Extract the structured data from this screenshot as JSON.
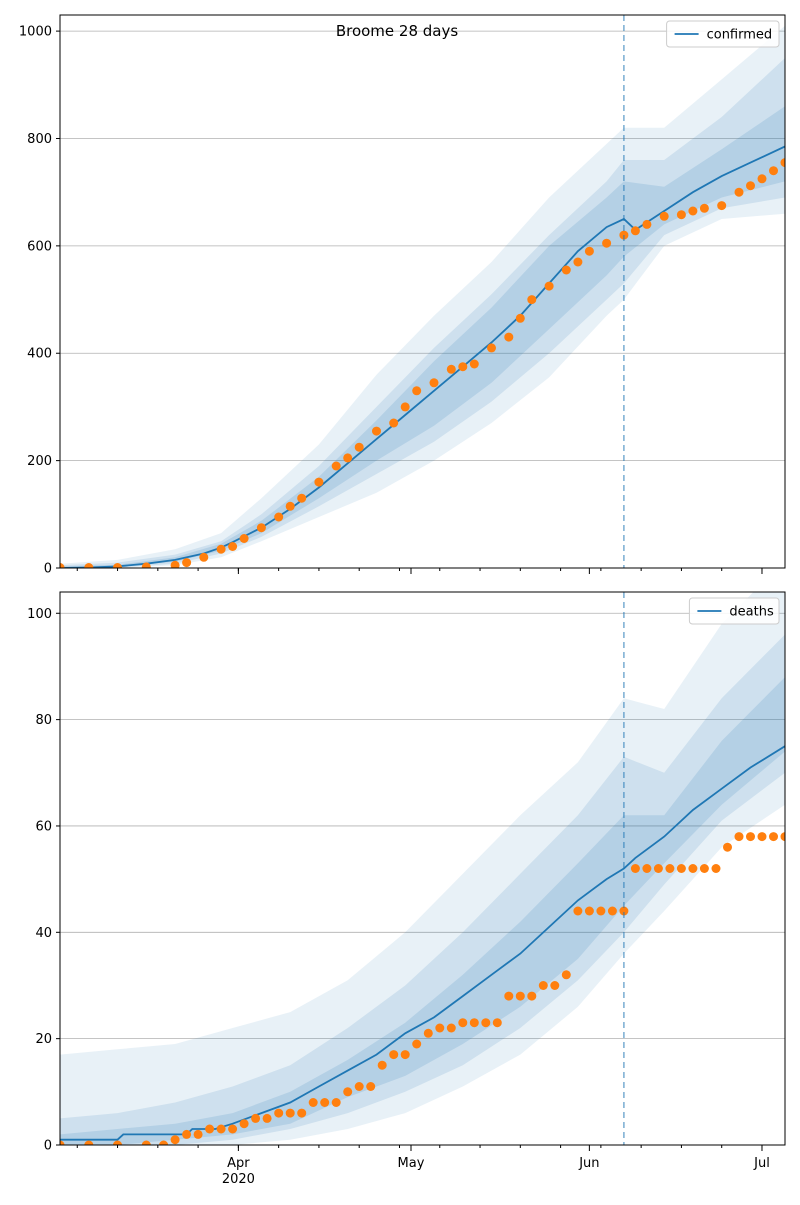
{
  "chart_data": [
    {
      "type": "line",
      "title": "Broome 28 days",
      "x_start_date": "2020-03-01",
      "x_range_days": [
        0,
        126
      ],
      "forecast_start_day": 98,
      "ylim": [
        0,
        1030
      ],
      "yticks": [
        0,
        200,
        400,
        600,
        800,
        1000
      ],
      "grid": "horizontal",
      "legend_position": "top-right",
      "series": [
        {
          "name": "confirmed",
          "color": "#1f77b4",
          "kind": "line",
          "x": [
            0,
            5,
            10,
            15,
            20,
            25,
            28,
            30,
            35,
            40,
            45,
            50,
            55,
            60,
            65,
            70,
            75,
            80,
            85,
            90,
            95,
            98,
            100,
            105,
            110,
            115,
            120,
            126
          ],
          "values": [
            0,
            1,
            3,
            8,
            15,
            27,
            38,
            48,
            75,
            110,
            150,
            195,
            240,
            285,
            330,
            375,
            420,
            470,
            530,
            590,
            635,
            650,
            630,
            665,
            700,
            730,
            755,
            785
          ]
        },
        {
          "kind": "scatter",
          "color": "#ff7f0e",
          "x": [
            0,
            5,
            10,
            15,
            20,
            22,
            25,
            28,
            30,
            32,
            35,
            38,
            40,
            42,
            45,
            48,
            50,
            52,
            55,
            58,
            60,
            62,
            65,
            68,
            70,
            72,
            75,
            78,
            80,
            82,
            85,
            88,
            90,
            92,
            95,
            98,
            100,
            102,
            105,
            108,
            110,
            112,
            115,
            118,
            120,
            122,
            124,
            126
          ],
          "values": [
            1,
            1,
            1,
            2,
            5,
            10,
            20,
            35,
            40,
            55,
            75,
            95,
            115,
            130,
            160,
            190,
            205,
            225,
            255,
            270,
            300,
            330,
            345,
            370,
            375,
            380,
            410,
            430,
            465,
            500,
            525,
            555,
            570,
            590,
            605,
            620,
            628,
            640,
            655,
            658,
            665,
            670,
            675,
            700,
            712,
            725,
            740,
            755
          ]
        }
      ],
      "bands": [
        {
          "opacity": 0.1,
          "x": [
            0,
            10,
            20,
            28,
            35,
            45,
            55,
            65,
            75,
            85,
            95,
            98,
            105,
            115,
            126
          ],
          "lower": [
            0,
            0,
            5,
            20,
            50,
            95,
            140,
            200,
            270,
            355,
            470,
            500,
            600,
            650,
            660
          ],
          "upper": [
            8,
            15,
            35,
            65,
            130,
            230,
            360,
            470,
            570,
            690,
            790,
            820,
            820,
            910,
            1010
          ]
        },
        {
          "opacity": 0.13,
          "x": [
            0,
            10,
            20,
            28,
            35,
            45,
            55,
            65,
            75,
            85,
            95,
            98,
            105,
            115,
            126
          ],
          "lower": [
            0,
            1,
            8,
            27,
            58,
            115,
            175,
            235,
            310,
            400,
            500,
            530,
            620,
            670,
            690
          ],
          "upper": [
            5,
            10,
            25,
            50,
            100,
            190,
            300,
            410,
            510,
            620,
            720,
            760,
            760,
            840,
            950
          ]
        },
        {
          "opacity": 0.15,
          "x": [
            0,
            10,
            20,
            28,
            35,
            45,
            55,
            65,
            75,
            85,
            95,
            98,
            105,
            115,
            126
          ],
          "lower": [
            0,
            2,
            12,
            32,
            65,
            130,
            200,
            265,
            345,
            445,
            545,
            580,
            640,
            690,
            720
          ],
          "upper": [
            3,
            6,
            20,
            45,
            88,
            170,
            275,
            385,
            485,
            600,
            690,
            720,
            710,
            780,
            860
          ]
        }
      ]
    },
    {
      "type": "line",
      "x_start_date": "2020-03-01",
      "x_range_days": [
        0,
        126
      ],
      "forecast_start_day": 98,
      "ylim": [
        0,
        104
      ],
      "yticks": [
        0,
        20,
        40,
        60,
        80,
        100
      ],
      "xticks": [
        {
          "day": 31,
          "label": "Apr",
          "sublabel": "2020"
        },
        {
          "day": 61,
          "label": "May",
          "sublabel": ""
        },
        {
          "day": 92,
          "label": "Jun",
          "sublabel": ""
        },
        {
          "day": 122,
          "label": "Jul",
          "sublabel": ""
        }
      ],
      "grid": "horizontal",
      "legend_position": "top-right",
      "series": [
        {
          "name": "deaths",
          "color": "#1f77b4",
          "kind": "line",
          "x": [
            0,
            10,
            11,
            22,
            23,
            27,
            30,
            35,
            40,
            45,
            50,
            55,
            60,
            65,
            70,
            75,
            80,
            85,
            90,
            95,
            98,
            100,
            105,
            110,
            115,
            120,
            126
          ],
          "values": [
            1,
            1,
            2,
            2,
            3,
            3,
            4,
            6,
            8,
            11,
            14,
            17,
            21,
            24,
            28,
            32,
            36,
            41,
            46,
            50,
            52,
            54,
            58,
            63,
            67,
            71,
            75
          ]
        },
        {
          "kind": "scatter",
          "color": "#ff7f0e",
          "x": [
            0,
            5,
            10,
            15,
            18,
            20,
            22,
            24,
            26,
            28,
            30,
            32,
            34,
            36,
            38,
            40,
            42,
            44,
            46,
            48,
            50,
            52,
            54,
            56,
            58,
            60,
            62,
            64,
            66,
            68,
            70,
            72,
            74,
            76,
            78,
            80,
            82,
            84,
            86,
            88,
            90,
            92,
            94,
            96,
            98,
            100,
            102,
            104,
            106,
            108,
            110,
            112,
            114,
            116,
            118,
            120,
            122,
            124,
            126
          ],
          "values": [
            0,
            0,
            0,
            0,
            0,
            1,
            2,
            2,
            3,
            3,
            3,
            4,
            5,
            5,
            6,
            6,
            6,
            8,
            8,
            8,
            10,
            11,
            11,
            15,
            17,
            17,
            19,
            21,
            22,
            22,
            23,
            23,
            23,
            23,
            28,
            28,
            28,
            30,
            30,
            32,
            44,
            44,
            44,
            44,
            44,
            52,
            52,
            52,
            52,
            52,
            52,
            52,
            52,
            56,
            58,
            58,
            58,
            58,
            58
          ]
        }
      ],
      "bands": [
        {
          "opacity": 0.1,
          "x": [
            0,
            10,
            20,
            30,
            40,
            50,
            60,
            70,
            80,
            90,
            98,
            105,
            115,
            126
          ],
          "lower": [
            0,
            0,
            0,
            0,
            1,
            3,
            6,
            11,
            17,
            26,
            36,
            44,
            56,
            64
          ],
          "upper": [
            17,
            18,
            19,
            22,
            25,
            31,
            40,
            51,
            62,
            72,
            84,
            82,
            98,
            110
          ]
        },
        {
          "opacity": 0.13,
          "x": [
            0,
            10,
            20,
            30,
            40,
            50,
            60,
            70,
            80,
            90,
            98,
            105,
            115,
            126
          ],
          "lower": [
            0,
            0,
            0,
            1,
            3,
            6,
            10,
            15,
            22,
            31,
            40,
            49,
            61,
            70
          ],
          "upper": [
            5,
            6,
            8,
            11,
            15,
            22,
            30,
            40,
            51,
            62,
            73,
            70,
            84,
            96
          ]
        },
        {
          "opacity": 0.15,
          "x": [
            0,
            10,
            20,
            30,
            40,
            50,
            60,
            70,
            80,
            90,
            98,
            105,
            115,
            126
          ],
          "lower": [
            0,
            0,
            1,
            2,
            4,
            9,
            13,
            19,
            26,
            35,
            45,
            53,
            64,
            74
          ],
          "upper": [
            2,
            3,
            4,
            6,
            10,
            16,
            23,
            32,
            42,
            53,
            62,
            62,
            76,
            88
          ]
        }
      ]
    }
  ]
}
